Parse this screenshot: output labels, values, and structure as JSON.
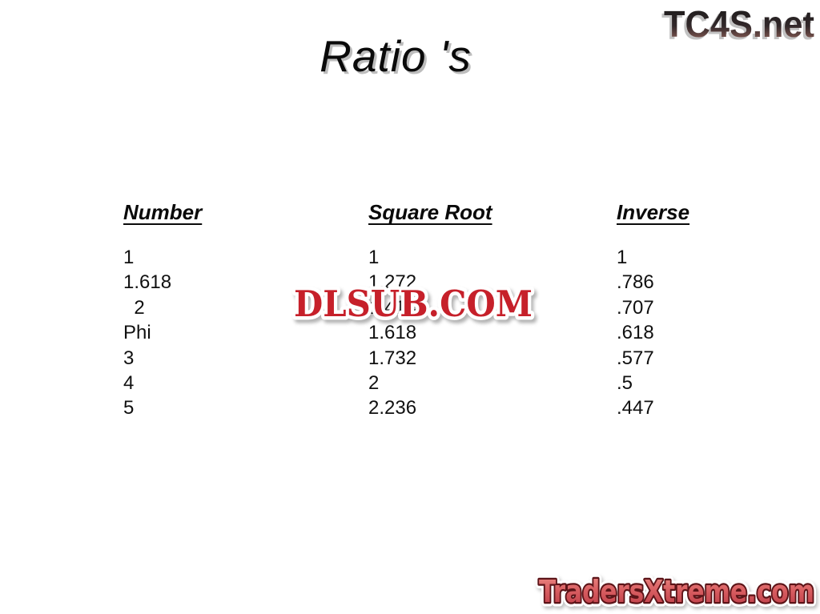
{
  "title": "Ratio 's",
  "table": {
    "columns": [
      {
        "header": "Number",
        "rows": [
          "1",
          "1.618",
          "  2",
          "Phi",
          "3",
          "4",
          "5"
        ]
      },
      {
        "header": "Square Root",
        "rows": [
          "1",
          "1.272",
          "1.414",
          "1.618",
          "1.732",
          "2",
          "2.236"
        ]
      },
      {
        "header": "Inverse",
        "rows": [
          "1",
          ".786",
          ".707",
          ".618",
          ".577",
          ".5",
          ".447"
        ]
      }
    ]
  },
  "watermarks": {
    "tc4s": {
      "text": "TC4S.net",
      "color_top": "#1a1a1a",
      "color_mid": "#32282a",
      "color_bottom": "#a06a60",
      "shadow_color": "#c2c2c2"
    },
    "dlsub": {
      "text": "DLSUB.COM",
      "fill_color": "#c6202a",
      "outline_color": "#ffffff"
    },
    "tradersxtreme": {
      "text": "TradersXtreme.com",
      "gradient_top": "#ec8b85",
      "gradient_mid": "#d95f62",
      "gradient_bottom": "#bb3a45",
      "outline_color": "#5c1418",
      "outer_outline_color": "#ffffff"
    }
  }
}
